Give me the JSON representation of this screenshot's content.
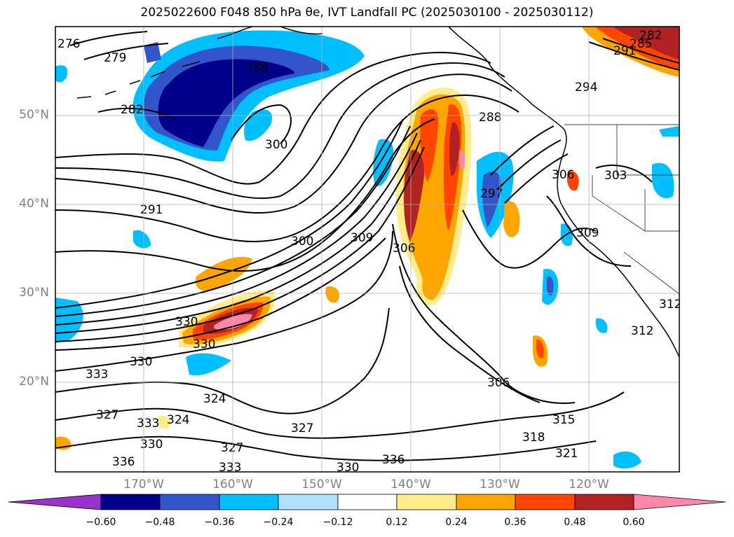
{
  "title": "2025022600 F048 850 hPa θe, IVT Landfall PC (2025030100 - 2025030112)",
  "map": {
    "lat_labels": [
      "50°N",
      "40°N",
      "30°N",
      "20°N"
    ],
    "lon_labels": [
      "170°W",
      "160°W",
      "150°W",
      "140°W",
      "130°W",
      "120°W"
    ],
    "contour_labels": [
      "276",
      "279",
      "282",
      "288",
      "291",
      "300",
      "309",
      "306",
      "297",
      "294",
      "288",
      "282",
      "285",
      "291",
      "303",
      "306",
      "309",
      "312",
      "312",
      "315",
      "318",
      "321",
      "327",
      "330",
      "333",
      "336",
      "324",
      "327",
      "330",
      "306",
      "300",
      "330",
      "333",
      "327",
      "324",
      "333",
      "330",
      "336",
      "330"
    ]
  },
  "colorbar": {
    "ticks": [
      "−0.60",
      "−0.48",
      "−0.36",
      "−0.24",
      "−0.12",
      "0.12",
      "0.24",
      "0.36",
      "0.48",
      "0.60"
    ],
    "colors": {
      "under": "#9933cc",
      "n060": "#00008b",
      "n048": "#3355cc",
      "n036": "#00bfff",
      "n024": "#b0e0ff",
      "mid": "#ffffff",
      "p012": "#ffec8b",
      "p024": "#ffa500",
      "p036": "#ff4500",
      "p048": "#b22222",
      "over": "#ff88aa"
    }
  }
}
